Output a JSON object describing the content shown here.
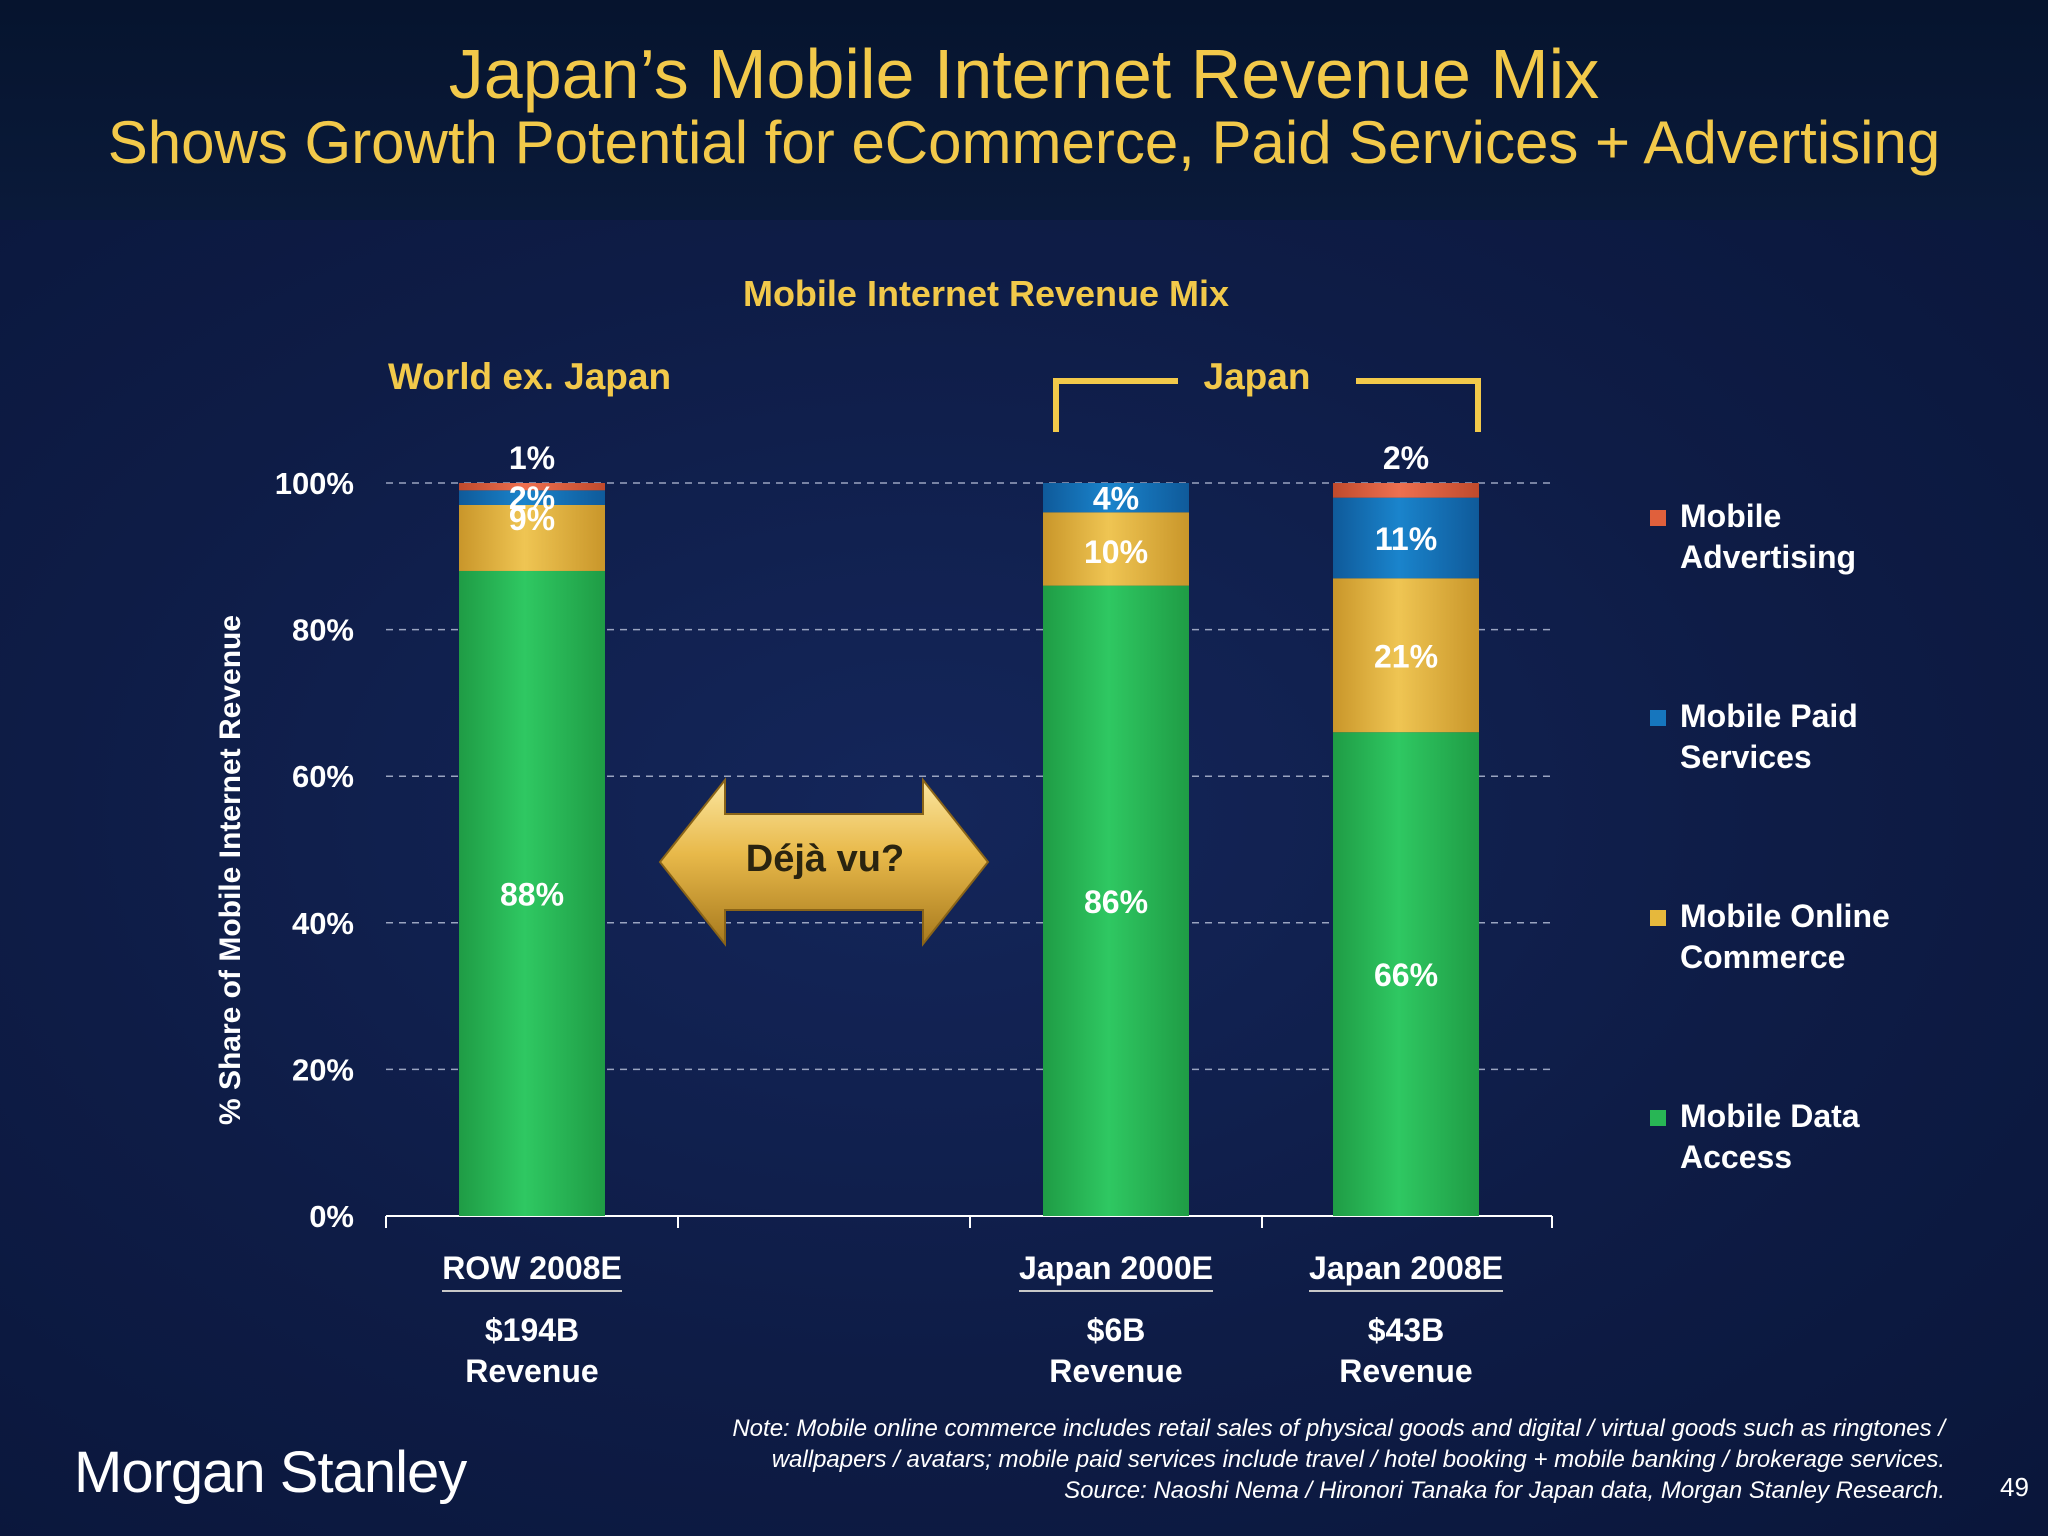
{
  "slide": {
    "title_line1": "Japan’s Mobile Internet Revenue Mix",
    "title_line2": "Shows Growth Potential for eCommerce, Paid Services + Advertising",
    "page_number": "49",
    "logo_text": "Morgan Stanley",
    "note_lines": [
      "Note: Mobile online commerce includes retail sales of physical goods and digital / virtual goods such as ringtones /",
      "wallpapers / avatars; mobile paid services include travel / hotel booking + mobile banking / brokerage services.",
      "Source: Naoshi Nema / Hironori Tanaka for Japan data, Morgan Stanley Research."
    ]
  },
  "annotations": {
    "group_world": "World ex. Japan",
    "group_japan": "Japan",
    "arrow_label": "Déjà vu?"
  },
  "colors": {
    "gold": "#f2c94a",
    "data_access": "#28b655",
    "online_commerce": "#e6b83c",
    "paid_services": "#1676be",
    "advertising": "#e0603c"
  },
  "chart_data": {
    "type": "bar",
    "stacked": true,
    "title": "Mobile Internet Revenue Mix",
    "ylabel": "% Share of Mobile Internet Revenue",
    "xlabel": "",
    "ylim": [
      0,
      100
    ],
    "yticks": [
      "0%",
      "20%",
      "40%",
      "60%",
      "80%",
      "100%"
    ],
    "grid": true,
    "legend_position": "right",
    "categories": [
      "ROW 2008E",
      "Japan 2000E",
      "Japan 2008E"
    ],
    "category_revenue": [
      {
        "amount": "$194B",
        "label": "Revenue"
      },
      {
        "amount": "$6B",
        "label": "Revenue"
      },
      {
        "amount": "$43B",
        "label": "Revenue"
      }
    ],
    "series": [
      {
        "name": "Mobile Data Access",
        "values": [
          88,
          86,
          66
        ],
        "labels": [
          "88%",
          "86%",
          "66%"
        ]
      },
      {
        "name": "Mobile Online Commerce",
        "values": [
          9,
          10,
          21
        ],
        "labels": [
          "9%",
          "10%",
          "21%"
        ]
      },
      {
        "name": "Mobile Paid Services",
        "values": [
          2,
          4,
          11
        ],
        "labels": [
          "2%",
          "4%",
          "11%"
        ]
      },
      {
        "name": "Mobile Advertising",
        "values": [
          1,
          0,
          2
        ],
        "labels": [
          "1%",
          "",
          "2%"
        ]
      }
    ]
  }
}
